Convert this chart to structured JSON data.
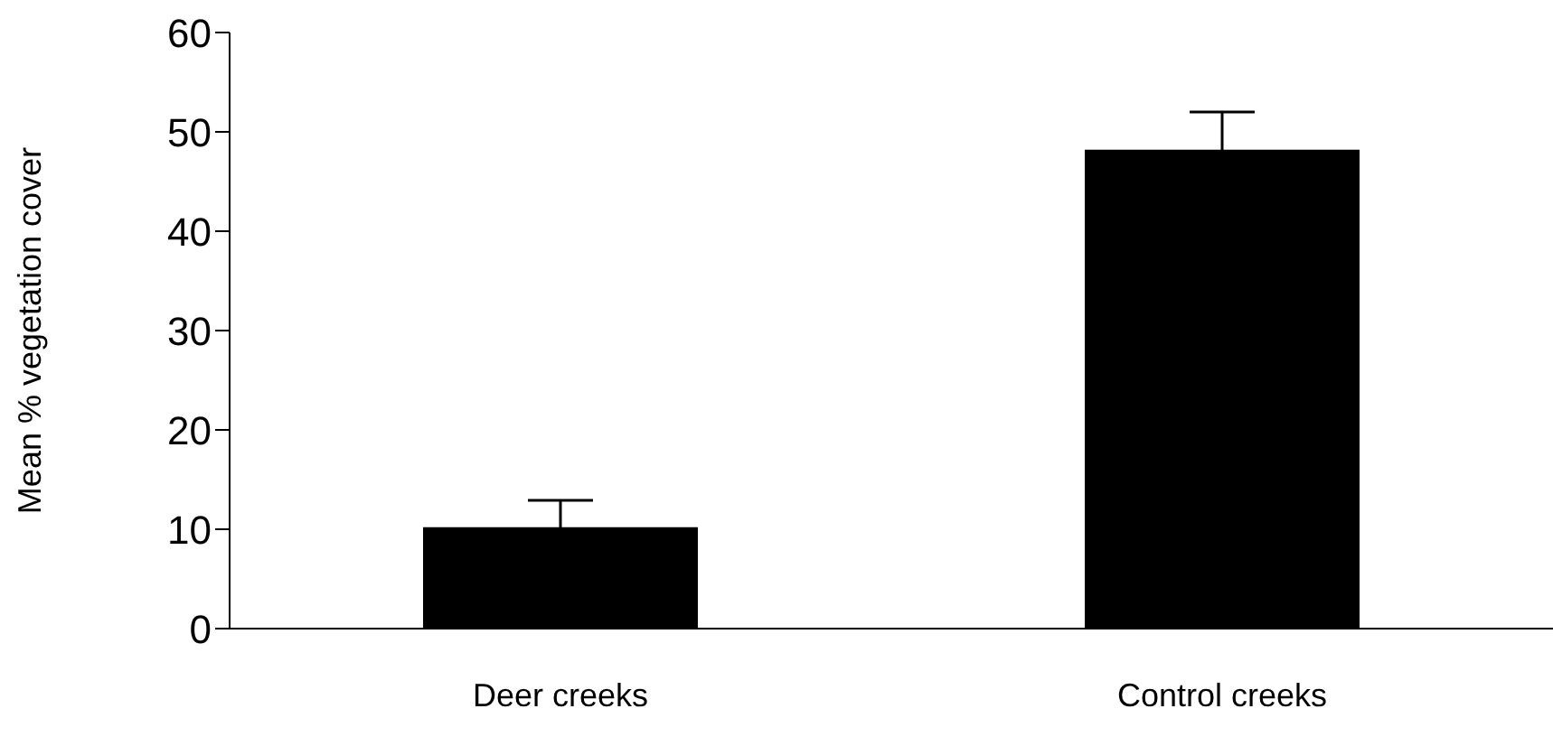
{
  "chart_data": {
    "type": "bar",
    "ylabel": "Mean % vegetation cover",
    "categories": [
      "Deer creeks",
      "Control creeks"
    ],
    "values": [
      10.2,
      48.2
    ],
    "errors": [
      2.7,
      3.8
    ],
    "color": "#000000",
    "ylim": [
      0,
      60
    ],
    "yticks": [
      0,
      10,
      20,
      30,
      40,
      50,
      60
    ],
    "grid": false
  }
}
